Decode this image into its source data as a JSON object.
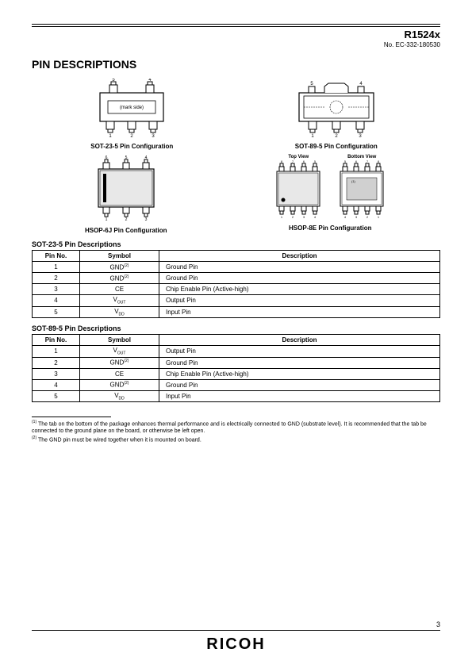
{
  "header": {
    "part": "R1524x",
    "docnum": "No. EC-332-180530"
  },
  "title": "PIN DESCRIPTIONS",
  "diagrams": {
    "sot23": {
      "label": "SOT-23-5 Pin Configuration",
      "mark": "(mark side)",
      "pins_top": [
        "5",
        "4"
      ],
      "pins_bot": [
        "1",
        "2",
        "3"
      ]
    },
    "sot89": {
      "label": "SOT-89-5 Pin Configuration",
      "pins_top": [
        "5",
        "4"
      ],
      "pins_bot": [
        "1",
        "2",
        "3"
      ]
    },
    "hsop6": {
      "label": "HSOP-6J Pin Configuration",
      "pins_top": [
        "6",
        "5",
        "4"
      ],
      "pins_bot": [
        "1",
        "2",
        "3"
      ]
    },
    "hsop8": {
      "label": "HSOP-8E Pin Configuration",
      "top_view": "Top View",
      "bottom_view": "Bottom View",
      "tv_top": [
        "8",
        "7",
        "6",
        "5"
      ],
      "tv_bot": [
        "1",
        "2",
        "3",
        "4"
      ],
      "bv_top": [
        "5",
        "6",
        "7",
        "8"
      ],
      "bv_bot": [
        "4",
        "3",
        "2",
        "1"
      ],
      "note1": "(1)"
    }
  },
  "tables": {
    "sot23": {
      "title": "SOT-23-5 Pin Descriptions",
      "headers": [
        "Pin No.",
        "Symbol",
        "Description"
      ],
      "rows": [
        {
          "pin": "1",
          "sym": "GND",
          "sup": "(2)",
          "desc": "Ground Pin"
        },
        {
          "pin": "2",
          "sym": "GND",
          "sup": "(2)",
          "desc": "Ground Pin"
        },
        {
          "pin": "3",
          "sym": "CE",
          "sup": "",
          "desc": "Chip Enable Pin (Active-high)"
        },
        {
          "pin": "4",
          "sym": "V",
          "sub": "OUT",
          "desc": "Output Pin"
        },
        {
          "pin": "5",
          "sym": "V",
          "sub": "DD",
          "desc": "Input Pin"
        }
      ]
    },
    "sot89": {
      "title": "SOT-89-5 Pin Descriptions",
      "headers": [
        "Pin No.",
        "Symbol",
        "Description"
      ],
      "rows": [
        {
          "pin": "1",
          "sym": "V",
          "sub": "OUT",
          "desc": "Output Pin"
        },
        {
          "pin": "2",
          "sym": "GND",
          "sup": "(2)",
          "desc": "Ground Pin"
        },
        {
          "pin": "3",
          "sym": "CE",
          "sup": "",
          "desc": "Chip Enable Pin (Active-high)"
        },
        {
          "pin": "4",
          "sym": "GND",
          "sup": "(2)",
          "desc": "Ground Pin"
        },
        {
          "pin": "5",
          "sym": "V",
          "sub": "DD",
          "desc": "Input Pin"
        }
      ]
    }
  },
  "footnotes": {
    "f1_sup": "(1)",
    "f1": " The tab on the bottom of the package enhances thermal performance and is electrically connected to GND (substrate level). It is recommended that the tab be connected to the ground plane on the board, or otherwise be left open.",
    "f2_sup": "(2)",
    "f2": " The GND pin must be wired together when it is mounted on board."
  },
  "footer": {
    "page": "3",
    "logo": "RICOH"
  }
}
